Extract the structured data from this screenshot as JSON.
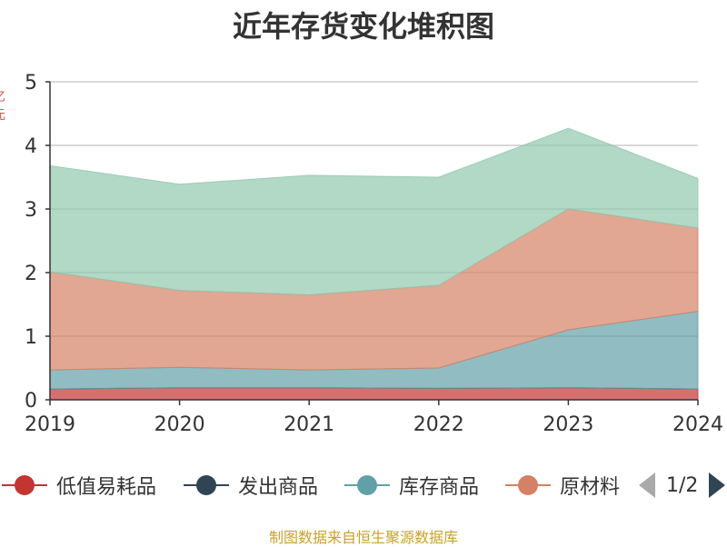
{
  "title": "近年存货变化堆积图",
  "source_text": "制图数据来自恒生聚源数据库",
  "y_axis_name": "亿元",
  "legend": {
    "items": [
      {
        "label": "低值易耗品",
        "color": "#c23531"
      },
      {
        "label": "发出商品",
        "color": "#2f4554"
      },
      {
        "label": "库存商品",
        "color": "#61a0a8"
      },
      {
        "label": "原材料",
        "color": "#d48265"
      }
    ],
    "page_text": "1/2"
  },
  "chart_data": {
    "type": "area",
    "stacked": true,
    "categories": [
      "2019",
      "2020",
      "2021",
      "2022",
      "2023",
      "2024"
    ],
    "ylim": [
      0,
      5
    ],
    "yticks": [
      "0",
      "1",
      "2",
      "3",
      "4",
      "5"
    ],
    "grid": true,
    "legend_position": "bottom",
    "series": [
      {
        "name": "低值易耗品",
        "color": "#c23531",
        "values": [
          0.17,
          0.19,
          0.19,
          0.18,
          0.19,
          0.17
        ]
      },
      {
        "name": "发出商品",
        "color": "#2f4554",
        "values": [
          0,
          0,
          0,
          0,
          0,
          0
        ]
      },
      {
        "name": "库存商品",
        "color": "#61a0a8",
        "values": [
          0.3,
          0.32,
          0.28,
          0.32,
          0.91,
          1.22
        ]
      },
      {
        "name": "原材料",
        "color": "#d48265",
        "values": [
          1.54,
          1.21,
          1.18,
          1.3,
          1.9,
          1.31
        ]
      },
      {
        "color": "#91c7ae",
        "values": [
          1.67,
          1.67,
          1.88,
          1.7,
          1.27,
          0.78
        ]
      }
    ]
  }
}
